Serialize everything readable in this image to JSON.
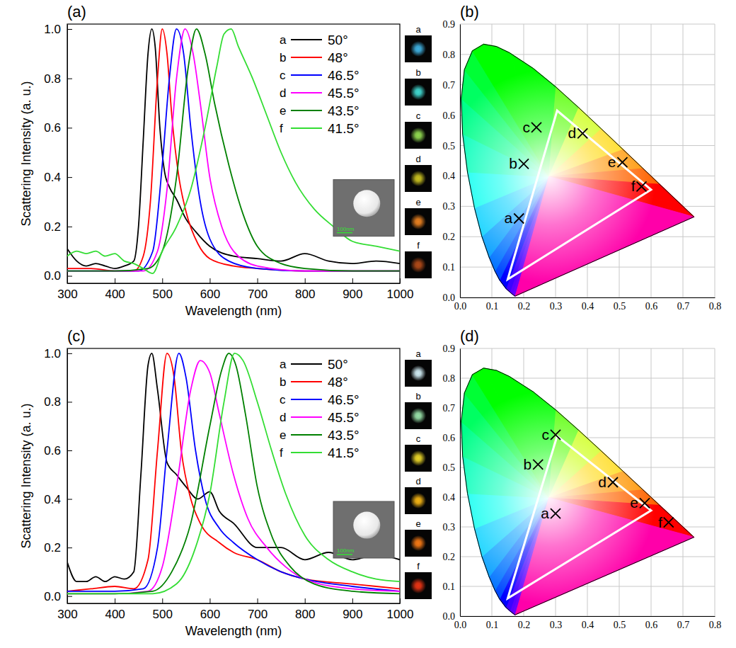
{
  "chart_data": [
    {
      "type": "line",
      "title": "(a)",
      "x_label": "Wavelength (nm)",
      "y_label": "Scattering Intensity (a. u.)",
      "xlim": [
        300,
        1000
      ],
      "xticks": [
        300,
        400,
        500,
        600,
        700,
        800,
        900,
        1000
      ],
      "ylim": [
        -0.03,
        1.02
      ],
      "yticks": [
        {
          "value": 0,
          "label": "0.0"
        },
        0.2,
        0.4,
        0.6,
        0.8,
        {
          "value": 1,
          "label": "1.0"
        }
      ],
      "legend": "upper right",
      "inset": {
        "scale_bar": "100nm"
      },
      "series": [
        {
          "label": "a",
          "name": "50°",
          "color": "#000000",
          "image_color": "#3fb0e0",
          "x": [
            300,
            320,
            340,
            360,
            380,
            400,
            420,
            440,
            450,
            460,
            470,
            478,
            485,
            495,
            505,
            515,
            530,
            550,
            570,
            600,
            650,
            700,
            750,
            800,
            850,
            900,
            950,
            1000
          ],
          "values": [
            0.11,
            0.06,
            0.04,
            0.05,
            0.04,
            0.03,
            0.04,
            0.06,
            0.2,
            0.55,
            0.9,
            1.0,
            0.93,
            0.6,
            0.42,
            0.36,
            0.31,
            0.23,
            0.18,
            0.12,
            0.08,
            0.07,
            0.06,
            0.09,
            0.06,
            0.05,
            0.06,
            0.05
          ]
        },
        {
          "label": "b",
          "name": "48°",
          "color": "#ff0000",
          "image_color": "#40d8d0",
          "x": [
            300,
            350,
            400,
            440,
            460,
            475,
            490,
            500,
            510,
            520,
            535,
            550,
            575,
            600,
            650,
            700,
            800,
            900,
            1000
          ],
          "values": [
            0.03,
            0.03,
            0.02,
            0.02,
            0.08,
            0.3,
            0.8,
            1.0,
            0.9,
            0.65,
            0.4,
            0.26,
            0.13,
            0.07,
            0.04,
            0.03,
            0.02,
            0.02,
            0.02
          ]
        },
        {
          "label": "c",
          "name": "46.5°",
          "color": "#0000ff",
          "image_color": "#90d850",
          "x": [
            300,
            350,
            400,
            450,
            480,
            500,
            515,
            530,
            545,
            560,
            580,
            600,
            640,
            700,
            800,
            900,
            1000
          ],
          "values": [
            0.02,
            0.02,
            0.02,
            0.02,
            0.1,
            0.45,
            0.8,
            1.0,
            0.9,
            0.6,
            0.3,
            0.15,
            0.06,
            0.03,
            0.02,
            0.02,
            0.02
          ]
        },
        {
          "label": "d",
          "name": "45.5°",
          "color": "#ff00ff",
          "image_color": "#c8c020",
          "x": [
            300,
            350,
            400,
            460,
            490,
            510,
            530,
            548,
            565,
            580,
            600,
            625,
            650,
            700,
            800,
            900,
            1000
          ],
          "values": [
            0.02,
            0.02,
            0.02,
            0.02,
            0.1,
            0.35,
            0.8,
            1.0,
            0.9,
            0.7,
            0.4,
            0.2,
            0.1,
            0.04,
            0.02,
            0.02,
            0.02
          ]
        },
        {
          "label": "e",
          "name": "43.5°",
          "color": "#008000",
          "image_color": "#e88020",
          "x": [
            300,
            350,
            400,
            470,
            500,
            530,
            555,
            572,
            590,
            610,
            640,
            670,
            700,
            750,
            800,
            900,
            1000
          ],
          "values": [
            0.02,
            0.02,
            0.02,
            0.03,
            0.1,
            0.4,
            0.85,
            1.0,
            0.9,
            0.7,
            0.45,
            0.25,
            0.12,
            0.05,
            0.03,
            0.02,
            0.02
          ]
        },
        {
          "label": "f",
          "name": "41.5°",
          "color": "#33dd33",
          "image_color": "#b04a18",
          "x": [
            300,
            320,
            340,
            360,
            380,
            400,
            420,
            440,
            460,
            480,
            500,
            530,
            560,
            590,
            615,
            630,
            645,
            660,
            690,
            720,
            750,
            780,
            820,
            860,
            900,
            950,
            1000
          ],
          "values": [
            0.08,
            0.1,
            0.09,
            0.1,
            0.08,
            0.09,
            0.06,
            0.05,
            0.03,
            0.01,
            0.1,
            0.2,
            0.35,
            0.6,
            0.85,
            0.98,
            1.0,
            0.93,
            0.8,
            0.65,
            0.5,
            0.38,
            0.27,
            0.2,
            0.14,
            0.12,
            0.1
          ]
        }
      ]
    },
    {
      "type": "scatter",
      "title": "(b)",
      "grid": true,
      "marker": "x",
      "xlim": [
        0,
        0.8
      ],
      "xticks": [
        {
          "value": 0,
          "label": "0.0"
        },
        0.1,
        0.2,
        0.3,
        0.4,
        0.5,
        0.6,
        0.7,
        0.8
      ],
      "ylim": [
        0,
        0.9
      ],
      "yticks": [
        {
          "value": 0,
          "label": "0.0"
        },
        0.1,
        0.2,
        0.3,
        0.4,
        0.5,
        0.6,
        0.7,
        0.8,
        0.9
      ],
      "series": [
        {
          "labels": [
            "a",
            "b",
            "c",
            "d",
            "e",
            "f"
          ],
          "x": [
            0.185,
            0.2,
            0.24,
            0.385,
            0.51,
            0.57
          ],
          "values": [
            0.26,
            0.44,
            0.56,
            0.54,
            0.445,
            0.365
          ]
        }
      ],
      "gamut": {
        "color": "#ffffff",
        "x": [
          0.15,
          0.305,
          0.6
        ],
        "values": [
          0.06,
          0.615,
          0.355
        ]
      },
      "spectral_locus": {
        "x": [
          0.1741,
          0.1714,
          0.1644,
          0.1566,
          0.144,
          0.1241,
          0.1096,
          0.0913,
          0.0687,
          0.0454,
          0.0235,
          0.0082,
          0.0039,
          0.0139,
          0.0389,
          0.0743,
          0.1142,
          0.1547,
          0.2296,
          0.3016,
          0.3731,
          0.4441,
          0.5125,
          0.5752,
          0.627,
          0.6915,
          0.719,
          0.7347
        ],
        "values": [
          0.005,
          0.0051,
          0.0109,
          0.0177,
          0.0297,
          0.0578,
          0.0868,
          0.1327,
          0.2007,
          0.295,
          0.4127,
          0.5384,
          0.6548,
          0.7502,
          0.812,
          0.8338,
          0.8262,
          0.8059,
          0.7543,
          0.6923,
          0.6245,
          0.5547,
          0.4866,
          0.4242,
          0.3725,
          0.3083,
          0.2809,
          0.2653
        ]
      }
    },
    {
      "type": "line",
      "title": "(c)",
      "x_label": "Wavelength (nm)",
      "y_label": "Scattering Intensity (a. u.)",
      "xlim": [
        300,
        1000
      ],
      "xticks": [
        300,
        400,
        500,
        600,
        700,
        800,
        900,
        1000
      ],
      "ylim": [
        -0.03,
        1.02
      ],
      "yticks": [
        {
          "value": 0,
          "label": "0.0"
        },
        0.2,
        0.4,
        0.6,
        0.8,
        {
          "value": 1,
          "label": "1.0"
        }
      ],
      "legend": "upper right",
      "inset": {
        "scale_bar": "100nm"
      },
      "series": [
        {
          "label": "a",
          "name": "50°",
          "color": "#000000",
          "image_color": "#d0ecf4",
          "x": [
            300,
            320,
            340,
            360,
            380,
            400,
            420,
            440,
            455,
            470,
            478,
            490,
            510,
            530,
            550,
            575,
            600,
            620,
            650,
            700,
            750,
            800,
            850,
            900,
            950,
            1000
          ],
          "values": [
            0.14,
            0.06,
            0.06,
            0.08,
            0.06,
            0.08,
            0.07,
            0.1,
            0.5,
            0.95,
            1.0,
            0.85,
            0.55,
            0.5,
            0.45,
            0.4,
            0.43,
            0.35,
            0.3,
            0.2,
            0.2,
            0.15,
            0.18,
            0.15,
            0.17,
            0.15
          ]
        },
        {
          "label": "b",
          "name": "48°",
          "color": "#ff0000",
          "image_color": "#98e0a8",
          "x": [
            300,
            350,
            400,
            440,
            470,
            490,
            510,
            525,
            540,
            560,
            580,
            620,
            650,
            700,
            750,
            800,
            900,
            1000
          ],
          "values": [
            0.02,
            0.03,
            0.04,
            0.03,
            0.15,
            0.6,
            1.0,
            0.9,
            0.6,
            0.4,
            0.3,
            0.22,
            0.18,
            0.15,
            0.1,
            0.07,
            0.05,
            0.03
          ]
        },
        {
          "label": "c",
          "name": "46.5°",
          "color": "#0000ff",
          "image_color": "#e8d428",
          "x": [
            300,
            350,
            400,
            460,
            490,
            510,
            535,
            550,
            570,
            590,
            620,
            650,
            700,
            750,
            800,
            900,
            1000
          ],
          "values": [
            0.02,
            0.02,
            0.02,
            0.03,
            0.2,
            0.6,
            1.0,
            0.9,
            0.6,
            0.4,
            0.28,
            0.22,
            0.15,
            0.1,
            0.07,
            0.04,
            0.02
          ]
        },
        {
          "label": "d",
          "name": "45.5°",
          "color": "#ff00ff",
          "image_color": "#f4b414",
          "x": [
            300,
            350,
            400,
            470,
            500,
            530,
            560,
            580,
            600,
            620,
            650,
            680,
            720,
            760,
            800,
            900,
            1000
          ],
          "values": [
            0.01,
            0.01,
            0.01,
            0.02,
            0.12,
            0.45,
            0.85,
            0.97,
            0.92,
            0.75,
            0.5,
            0.32,
            0.2,
            0.12,
            0.07,
            0.03,
            0.02
          ]
        },
        {
          "label": "e",
          "name": "43.5°",
          "color": "#008000",
          "image_color": "#f47814",
          "x": [
            300,
            350,
            400,
            480,
            520,
            560,
            600,
            625,
            640,
            655,
            675,
            700,
            730,
            770,
            820,
            900,
            1000
          ],
          "values": [
            0.01,
            0.01,
            0.01,
            0.02,
            0.1,
            0.3,
            0.7,
            0.93,
            1.0,
            0.95,
            0.75,
            0.45,
            0.25,
            0.12,
            0.05,
            0.02,
            0.01
          ]
        },
        {
          "label": "f",
          "name": "41.5°",
          "color": "#33dd33",
          "image_color": "#e83414",
          "x": [
            300,
            350,
            400,
            480,
            530,
            570,
            600,
            630,
            652,
            670,
            700,
            730,
            760,
            800,
            850,
            900,
            950,
            1000
          ],
          "values": [
            0.01,
            0.01,
            0.01,
            0.01,
            0.05,
            0.2,
            0.42,
            0.8,
            1.0,
            0.97,
            0.8,
            0.6,
            0.42,
            0.25,
            0.15,
            0.1,
            0.07,
            0.06
          ]
        }
      ]
    },
    {
      "type": "scatter",
      "title": "(d)",
      "grid": true,
      "marker": "x",
      "xlim": [
        0,
        0.8
      ],
      "xticks": [
        {
          "value": 0,
          "label": "0.0"
        },
        0.1,
        0.2,
        0.3,
        0.4,
        0.5,
        0.6,
        0.7,
        0.8
      ],
      "ylim": [
        0,
        0.9
      ],
      "yticks": [
        {
          "value": 0,
          "label": "0.0"
        },
        0.1,
        0.2,
        0.3,
        0.4,
        0.5,
        0.6,
        0.7,
        0.8,
        0.9
      ],
      "series": [
        {
          "labels": [
            "a",
            "b",
            "c",
            "d",
            "e",
            "f"
          ],
          "x": [
            0.3,
            0.245,
            0.3,
            0.48,
            0.58,
            0.655
          ],
          "values": [
            0.345,
            0.51,
            0.61,
            0.45,
            0.38,
            0.315
          ]
        }
      ],
      "gamut": {
        "color": "#ffffff",
        "x": [
          0.15,
          0.305,
          0.6
        ],
        "values": [
          0.06,
          0.605,
          0.355
        ]
      },
      "spectral_locus": {
        "x": [
          0.1741,
          0.1714,
          0.1644,
          0.1566,
          0.144,
          0.1241,
          0.1096,
          0.0913,
          0.0687,
          0.0454,
          0.0235,
          0.0082,
          0.0039,
          0.0139,
          0.0389,
          0.0743,
          0.1142,
          0.1547,
          0.2296,
          0.3016,
          0.3731,
          0.4441,
          0.5125,
          0.5752,
          0.627,
          0.6915,
          0.719,
          0.7347
        ],
        "values": [
          0.005,
          0.0051,
          0.0109,
          0.0177,
          0.0297,
          0.0578,
          0.0868,
          0.1327,
          0.2007,
          0.295,
          0.4127,
          0.5384,
          0.6548,
          0.7502,
          0.812,
          0.8338,
          0.8262,
          0.8059,
          0.7543,
          0.6923,
          0.6245,
          0.5547,
          0.4866,
          0.4242,
          0.3725,
          0.3083,
          0.2809,
          0.2653
        ]
      }
    }
  ]
}
